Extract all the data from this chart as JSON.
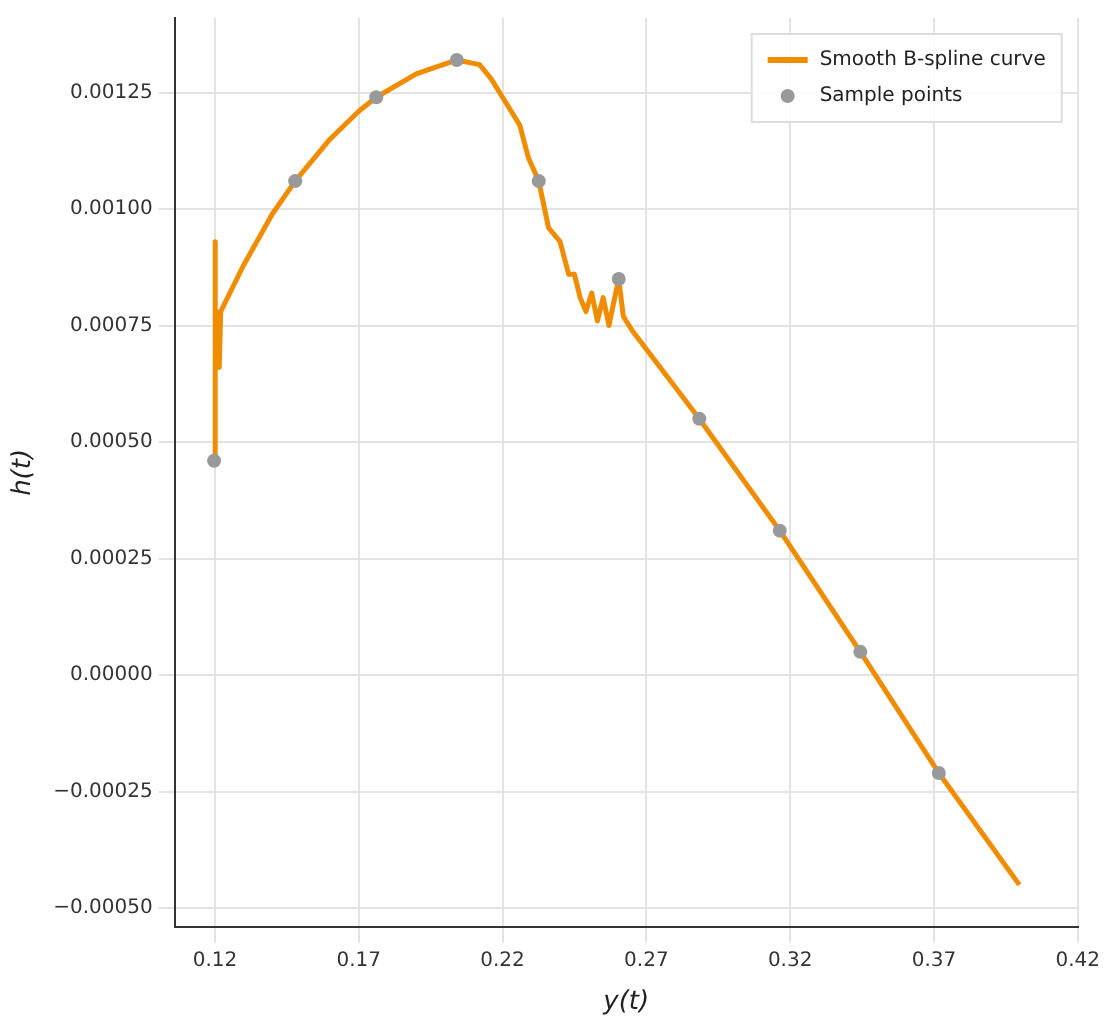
{
  "chart_data": {
    "type": "line",
    "xlabel": "y(t)",
    "ylabel": "h(t)",
    "xlim": [
      0.106,
      0.42
    ],
    "ylim": [
      -0.00054,
      0.00141
    ],
    "xticks": [
      0.12,
      0.17,
      0.22,
      0.27,
      0.32,
      0.37,
      0.42
    ],
    "yticks": [
      {
        "value": -0.0005,
        "label": "−0.00050"
      },
      {
        "value": -0.00025,
        "label": "−0.00025"
      },
      {
        "value": 0,
        "label": "0.00000"
      },
      {
        "value": 0.00025,
        "label": "0.00025"
      },
      {
        "value": 0.0005,
        "label": "0.00050"
      },
      {
        "value": 0.00075,
        "label": "0.00075"
      },
      {
        "value": 0.001,
        "label": "0.00100"
      },
      {
        "value": 0.00125,
        "label": "0.00125"
      }
    ],
    "grid": true,
    "legend": "top right",
    "series": [
      {
        "name": "Smooth B-spline curve",
        "color": "#f08c00",
        "marker": "none",
        "x": [
          0.1197,
          0.1199,
          0.1203,
          0.1206,
          0.1215,
          0.122,
          0.13,
          0.14,
          0.1479,
          0.16,
          0.17,
          0.1761,
          0.19,
          0.2041,
          0.212,
          0.216,
          0.22,
          0.226,
          0.229,
          0.2326,
          0.236,
          0.24,
          0.243,
          0.245,
          0.247,
          0.249,
          0.251,
          0.253,
          0.255,
          0.257,
          0.259,
          0.2604,
          0.262,
          0.265,
          0.2884,
          0.3164,
          0.3444,
          0.3717,
          0.3997
        ],
        "values": [
          0.00046,
          0.00093,
          0.00066,
          0.00078,
          0.00066,
          0.00078,
          0.00088,
          0.00099,
          0.00106,
          0.00115,
          0.00121,
          0.00124,
          0.00129,
          0.00132,
          0.00131,
          0.00128,
          0.00124,
          0.00118,
          0.00111,
          0.00106,
          0.00096,
          0.00093,
          0.00086,
          0.00086,
          0.00081,
          0.00078,
          0.00082,
          0.00076,
          0.00081,
          0.00075,
          0.00081,
          0.00085,
          0.00077,
          0.00074,
          0.00055,
          0.00031,
          5e-05,
          -0.00021,
          -0.00045
        ]
      },
      {
        "name": "Sample points",
        "type": "scatter",
        "color": "#999999",
        "marker": "circle",
        "x": [
          0.1197,
          0.1479,
          0.1761,
          0.2041,
          0.2326,
          0.2604,
          0.2884,
          0.3164,
          0.3444,
          0.3717
        ],
        "values": [
          0.00046,
          0.00106,
          0.00124,
          0.00132,
          0.00106,
          0.00085,
          0.00055,
          0.00031,
          5e-05,
          -0.00021
        ]
      }
    ]
  }
}
